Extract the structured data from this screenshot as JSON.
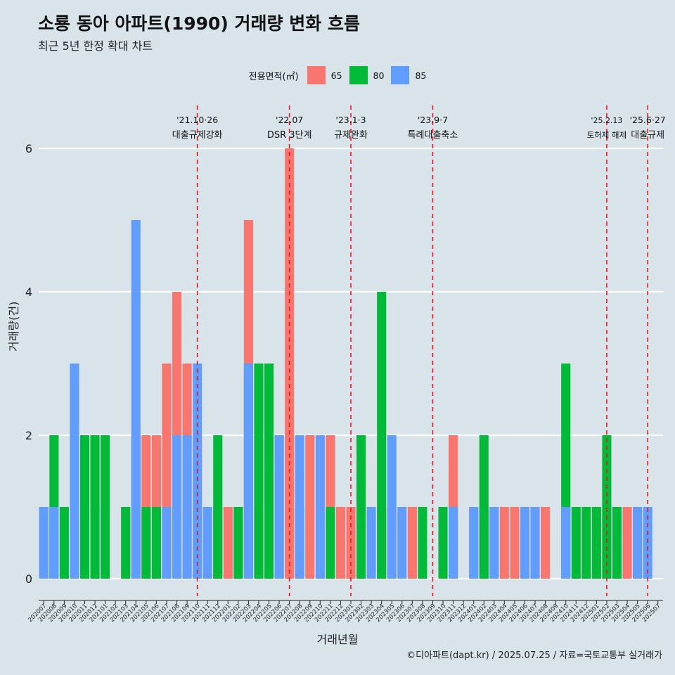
{
  "title": "소룡 동아 아파트(1990) 거래량 변화 흐름",
  "subtitle": "최근 5년 한정 확대 차트",
  "caption": "©디아파트(dapt.kr) / 2025.07.25 / 자료=국토교통부 실거래가",
  "legend": {
    "title": "전용면적(㎡)",
    "items": [
      {
        "label": "65",
        "color": "#F8766D"
      },
      {
        "label": "80",
        "color": "#00BA38"
      },
      {
        "label": "85",
        "color": "#619CFF"
      }
    ]
  },
  "chart_data": {
    "type": "bar",
    "xlabel": "거래년월",
    "ylabel": "거래량(건)",
    "ylim": [
      0,
      6.5
    ],
    "yticks": [
      0,
      2,
      4,
      6
    ],
    "categories": [
      "202007",
      "202008",
      "202009",
      "202010",
      "202011",
      "202012",
      "202101",
      "202102",
      "202103",
      "202104",
      "202105",
      "202106",
      "202107",
      "202108",
      "202109",
      "202110",
      "202111",
      "202112",
      "202201",
      "202202",
      "202203",
      "202204",
      "202205",
      "202206",
      "202207",
      "202208",
      "202209",
      "202210",
      "202211",
      "202212",
      "202301",
      "202302",
      "202303",
      "202304",
      "202305",
      "202306",
      "202307",
      "202308",
      "202309",
      "202310",
      "202311",
      "202312",
      "202401",
      "202402",
      "202403",
      "202404",
      "202405",
      "202406",
      "202407",
      "202408",
      "202409",
      "202410",
      "202411",
      "202412",
      "202501",
      "202502",
      "202503",
      "202504",
      "202505",
      "202506",
      "202507"
    ],
    "bars": [
      [
        {
          "s": "80",
          "v": 1
        },
        {
          "s": "85",
          "v": 1
        }
      ],
      [
        {
          "s": "65",
          "v": 1
        },
        {
          "s": "80",
          "v": 2
        },
        {
          "s": "85",
          "v": 1
        }
      ],
      [
        {
          "s": "80",
          "v": 1
        }
      ],
      [
        {
          "s": "85",
          "v": 3
        }
      ],
      [
        {
          "s": "80",
          "v": 2
        }
      ],
      [
        {
          "s": "80",
          "v": 2
        }
      ],
      [
        {
          "s": "65",
          "v": 1
        },
        {
          "s": "80",
          "v": 2
        }
      ],
      [],
      [
        {
          "s": "65",
          "v": 1
        },
        {
          "s": "80",
          "v": 1
        }
      ],
      [
        {
          "s": "85",
          "v": 2
        },
        {
          "s": "65",
          "v": 2
        },
        {
          "s": "85",
          "v": 5
        }
      ],
      [
        {
          "s": "65",
          "v": 2
        },
        {
          "s": "80",
          "v": 1
        }
      ],
      [
        {
          "s": "65",
          "v": 2
        },
        {
          "s": "80",
          "v": 1
        }
      ],
      [
        {
          "s": "65",
          "v": 3
        },
        {
          "s": "85",
          "v": 1
        }
      ],
      [
        {
          "s": "65",
          "v": 4
        },
        {
          "s": "85",
          "v": 2
        }
      ],
      [
        {
          "s": "65",
          "v": 3
        },
        {
          "s": "85",
          "v": 2
        }
      ],
      [
        {
          "s": "65",
          "v": 2
        },
        {
          "s": "80",
          "v": 1
        },
        {
          "s": "85",
          "v": 3
        }
      ],
      [
        {
          "s": "85",
          "v": 1
        }
      ],
      [
        {
          "s": "65",
          "v": 1
        },
        {
          "s": "80",
          "v": 2
        }
      ],
      [
        {
          "s": "65",
          "v": 1
        }
      ],
      [
        {
          "s": "65",
          "v": 1
        },
        {
          "s": "80",
          "v": 1
        }
      ],
      [
        {
          "s": "65",
          "v": 5
        },
        {
          "s": "80",
          "v": 3
        },
        {
          "s": "85",
          "v": 3
        }
      ],
      [
        {
          "s": "85",
          "v": 1
        },
        {
          "s": "80",
          "v": 3
        }
      ],
      [
        {
          "s": "65",
          "v": 3
        },
        {
          "s": "80",
          "v": 3
        }
      ],
      [
        {
          "s": "80",
          "v": 2
        },
        {
          "s": "85",
          "v": 2
        }
      ],
      [
        {
          "s": "65",
          "v": 2
        },
        {
          "s": "65",
          "v": 6
        }
      ],
      [
        {
          "s": "80",
          "v": 1
        },
        {
          "s": "85",
          "v": 2
        }
      ],
      [
        {
          "s": "65",
          "v": 2
        }
      ],
      [
        {
          "s": "85",
          "v": 2
        }
      ],
      [
        {
          "s": "65",
          "v": 2
        },
        {
          "s": "80",
          "v": 1
        }
      ],
      [
        {
          "s": "65",
          "v": 1
        }
      ],
      [
        {
          "s": "65",
          "v": 1
        }
      ],
      [
        {
          "s": "80",
          "v": 2
        }
      ],
      [
        {
          "s": "85",
          "v": 1
        }
      ],
      [
        {
          "s": "65",
          "v": 1
        },
        {
          "s": "80",
          "v": 4
        }
      ],
      [
        {
          "s": "65",
          "v": 1
        },
        {
          "s": "85",
          "v": 2
        }
      ],
      [
        {
          "s": "85",
          "v": 1
        }
      ],
      [
        {
          "s": "65",
          "v": 1
        }
      ],
      [
        {
          "s": "80",
          "v": 1
        }
      ],
      [],
      [
        {
          "s": "80",
          "v": 1
        }
      ],
      [
        {
          "s": "80",
          "v": 1
        },
        {
          "s": "65",
          "v": 2
        },
        {
          "s": "85",
          "v": 1
        }
      ],
      [],
      [
        {
          "s": "65",
          "v": 1
        },
        {
          "s": "85",
          "v": 1
        }
      ],
      [
        {
          "s": "85",
          "v": 1
        },
        {
          "s": "80",
          "v": 2
        }
      ],
      [
        {
          "s": "80",
          "v": 1
        },
        {
          "s": "85",
          "v": 1
        }
      ],
      [
        {
          "s": "65",
          "v": 1
        }
      ],
      [
        {
          "s": "65",
          "v": 1
        }
      ],
      [
        {
          "s": "85",
          "v": 1
        }
      ],
      [
        {
          "s": "85",
          "v": 1
        }
      ],
      [
        {
          "s": "65",
          "v": 1
        }
      ],
      [],
      [
        {
          "s": "80",
          "v": 3
        },
        {
          "s": "85",
          "v": 1
        }
      ],
      [
        {
          "s": "80",
          "v": 1
        }
      ],
      [
        {
          "s": "80",
          "v": 1
        }
      ],
      [
        {
          "s": "65",
          "v": 1
        },
        {
          "s": "80",
          "v": 1
        }
      ],
      [
        {
          "s": "65",
          "v": 1
        },
        {
          "s": "80",
          "v": 2
        }
      ],
      [
        {
          "s": "80",
          "v": 1
        }
      ],
      [
        {
          "s": "65",
          "v": 1
        }
      ],
      [
        {
          "s": "65",
          "v": 1
        },
        {
          "s": "85",
          "v": 1
        }
      ],
      [
        {
          "s": "85",
          "v": 1
        }
      ],
      []
    ],
    "events": [
      {
        "month": "202110",
        "line1": "'21.10·26",
        "line2": "대출규제강화"
      },
      {
        "month": "202207",
        "line1": "'22.07",
        "line2": "DSR 3단계"
      },
      {
        "month": "202301",
        "line1": "'23.1·3",
        "line2": "규제완화"
      },
      {
        "month": "202309",
        "line1": "'23.9·7",
        "line2": "특례대출축소"
      },
      {
        "month": "202502",
        "line1": "'25.2.13",
        "line2": "토허제 해제"
      },
      {
        "month": "202506",
        "line1": "'25.6·27",
        "line2": "대출규제"
      }
    ]
  }
}
